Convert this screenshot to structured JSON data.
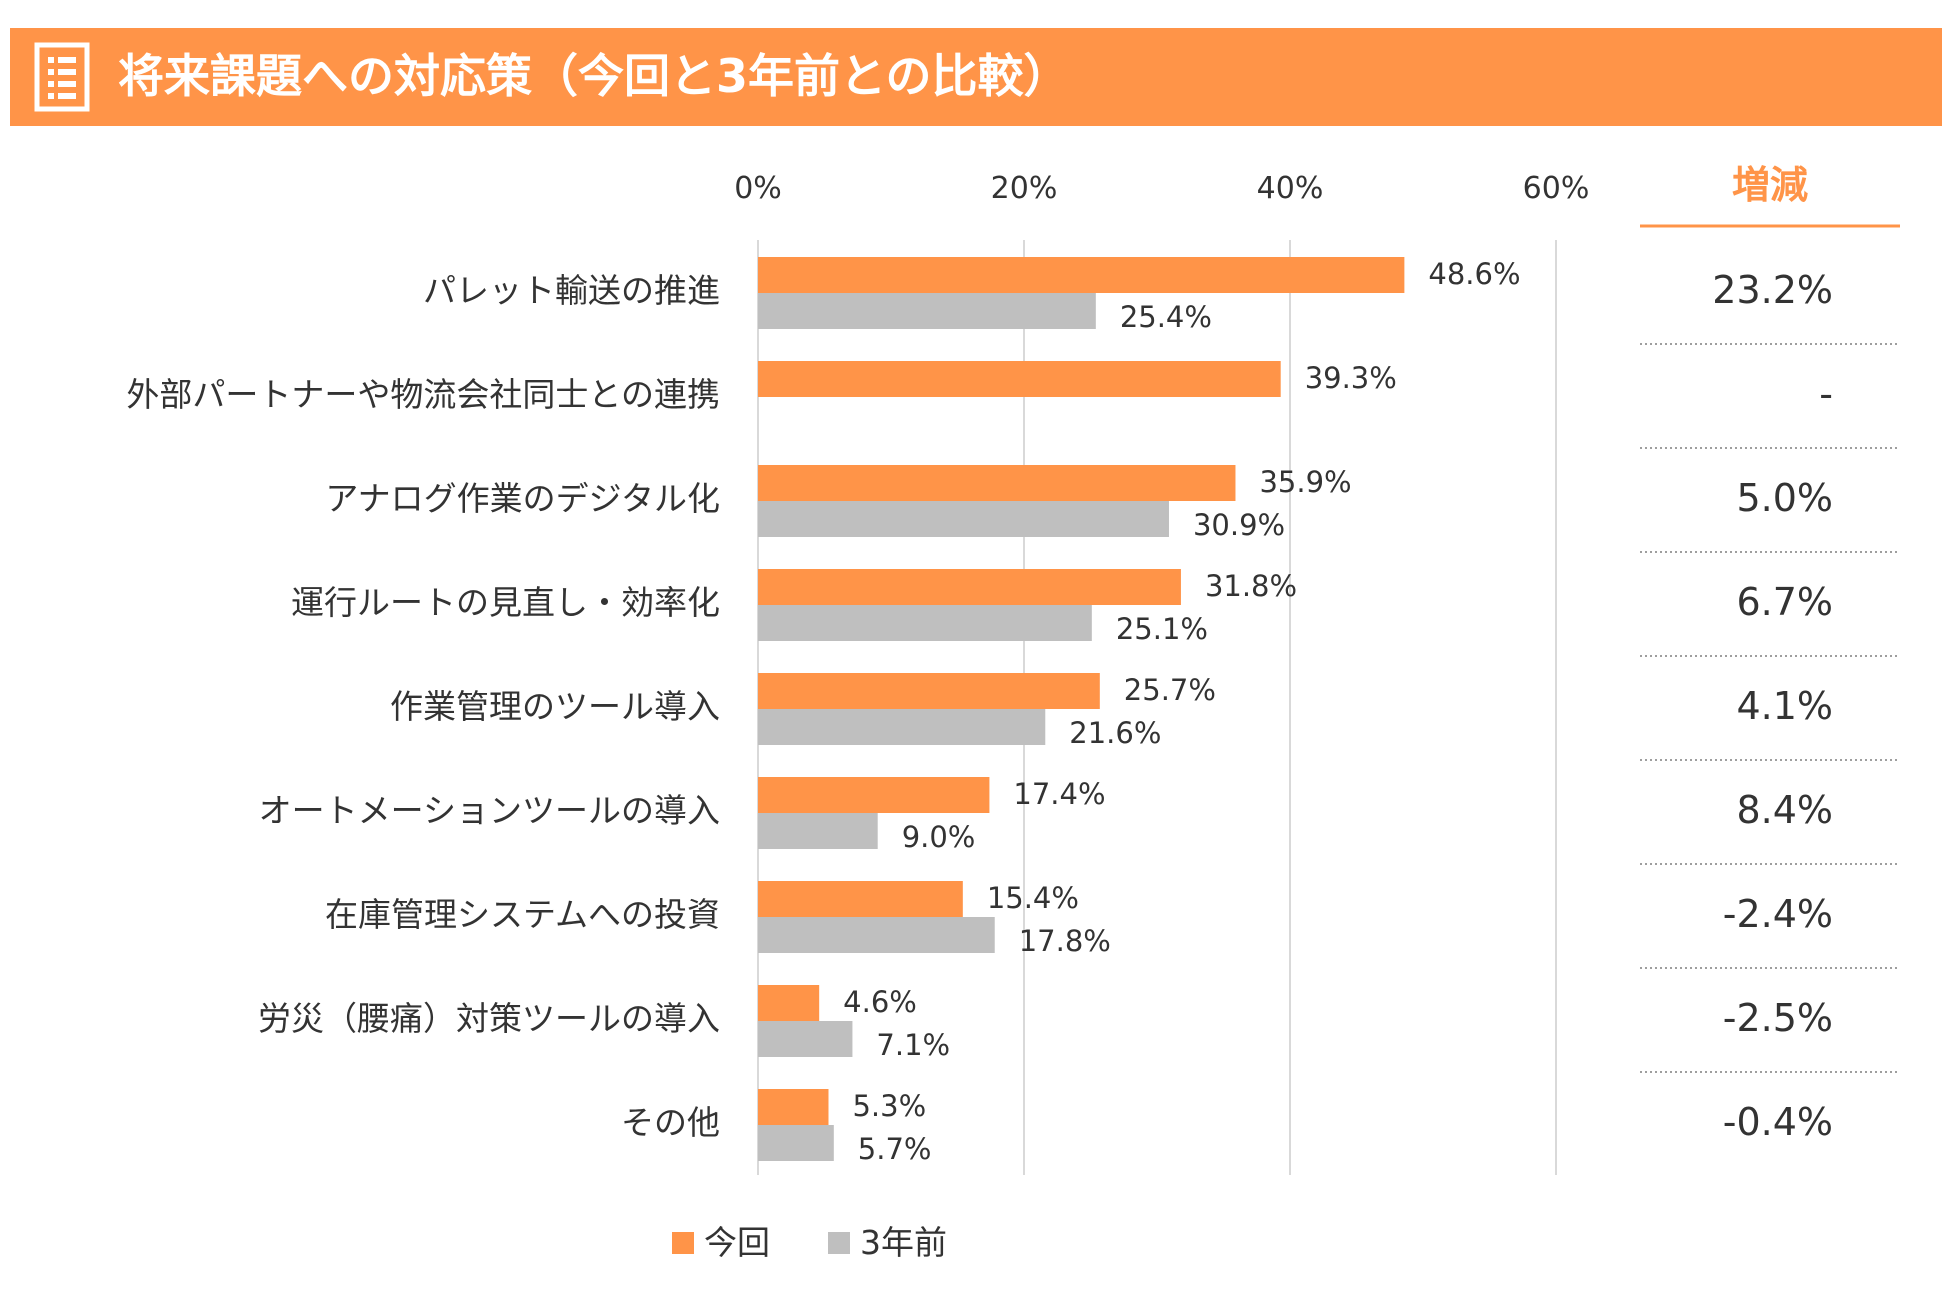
{
  "header": {
    "title": "将来課題への対応策（今回と3年前との比較）",
    "icon": "document-list-icon",
    "color": "#FF9448"
  },
  "chart_data": {
    "type": "bar",
    "orientation": "horizontal",
    "categories": [
      "パレット輸送の推進",
      "外部パートナーや物流会社同士との連携",
      "アナログ作業のデジタル化",
      "運行ルートの見直し・効率化",
      "作業管理のツール導入",
      "オートメーションツールの導入",
      "在庫管理システムへの投資",
      "労災（腰痛）対策ツールの導入",
      "その他"
    ],
    "series": [
      {
        "name": "今回",
        "color": "#FF9448",
        "values": [
          48.6,
          39.3,
          35.9,
          31.8,
          25.7,
          17.4,
          15.4,
          4.6,
          5.3
        ],
        "labels": [
          "48.6%",
          "39.3%",
          "35.9%",
          "31.8%",
          "25.7%",
          "17.4%",
          "15.4%",
          "4.6%",
          "5.3%"
        ]
      },
      {
        "name": "3年前",
        "color": "#BFBFBF",
        "values": [
          25.4,
          null,
          30.9,
          25.1,
          21.6,
          9.0,
          17.8,
          7.1,
          5.7
        ],
        "labels": [
          "25.4%",
          "",
          "30.9%",
          "25.1%",
          "21.6%",
          "9.0%",
          "17.8%",
          "7.1%",
          "5.7%"
        ]
      }
    ],
    "xlim": [
      0,
      60
    ],
    "x_ticks": [
      "0%",
      "20%",
      "40%",
      "60%"
    ],
    "grid": true,
    "legend_position": "bottom"
  },
  "delta_column": {
    "header": "増減",
    "values": [
      "23.2%",
      "-",
      "5.0%",
      "6.7%",
      "4.1%",
      "8.4%",
      "-2.4%",
      "-2.5%",
      "-0.4%"
    ]
  }
}
